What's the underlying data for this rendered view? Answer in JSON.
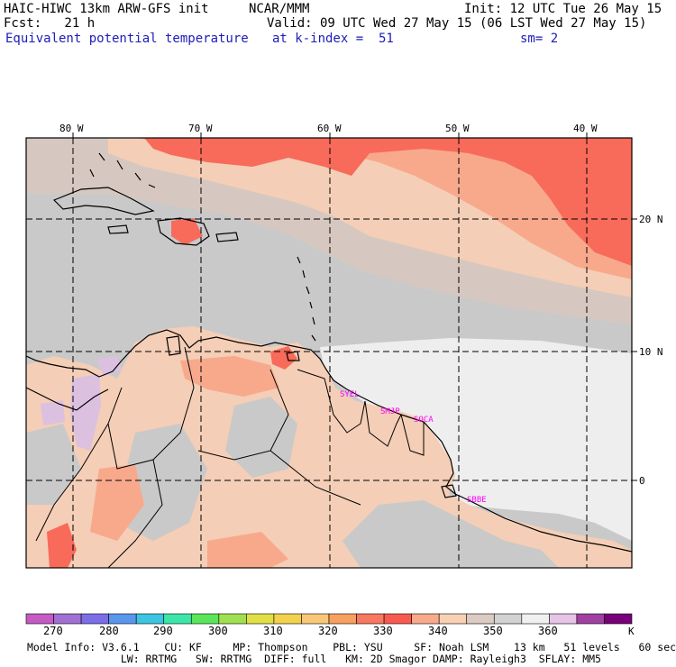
{
  "header": {
    "model": "HAIC-HIWC 13km ARW-GFS init",
    "center": "NCAR/MMM",
    "init": "Init: 12 UTC Tue 26 May 15",
    "fcst": "Fcst:   21 h",
    "valid": "Valid: 09 UTC Wed 27 May 15 (06 LST Wed 27 May 15)",
    "field": "Equivalent potential temperature",
    "level": "at k-index =  51",
    "smooth": "sm= 2"
  },
  "axes": {
    "lon_labels": [
      "80 W",
      "70 W",
      "60 W",
      "50 W",
      "40 W"
    ],
    "lat_labels": [
      "20 N",
      "10 N",
      "0"
    ]
  },
  "stations": [
    "SYEL",
    "SMJP",
    "SOCA",
    "SBBE"
  ],
  "colorbar": {
    "unit": "K",
    "labels": [
      "270",
      "280",
      "290",
      "300",
      "310",
      "320",
      "330",
      "340",
      "350",
      "360"
    ],
    "colors": [
      "#c45ac4",
      "#a070d2",
      "#7c6ee6",
      "#5a96ec",
      "#3cc4e0",
      "#3ce6a8",
      "#5ae65a",
      "#a0e050",
      "#e0e046",
      "#f2d24c",
      "#f8c878",
      "#f8a060",
      "#f87860",
      "#f85a50",
      "#f8aa8a",
      "#f8d0b4",
      "#dccbc3",
      "#d2d2d2",
      "#f0f0f0",
      "#e6c4e6",
      "#a040a0",
      "#780078"
    ]
  },
  "map_colors": {
    "ocean_grey": "#c9c9c9",
    "warm_grey": "#d6c8c0",
    "peach": "#f4ceb6",
    "salmon": "#f8a98c",
    "red": "#f86a5a",
    "light": "#eeeeee",
    "lavender": "#dcc0e0"
  },
  "footer": {
    "line1": "Model Info: V3.6.1    CU: KF     MP: Thompson    PBL: YSU     SF: Noah LSM    13 km   51 levels   60 sec",
    "line2": "               LW: RRTMG   SW: RRTMG  DIFF: full   KM: 2D Smagor DAMP: Rayleigh3  SFLAY: MM5"
  }
}
